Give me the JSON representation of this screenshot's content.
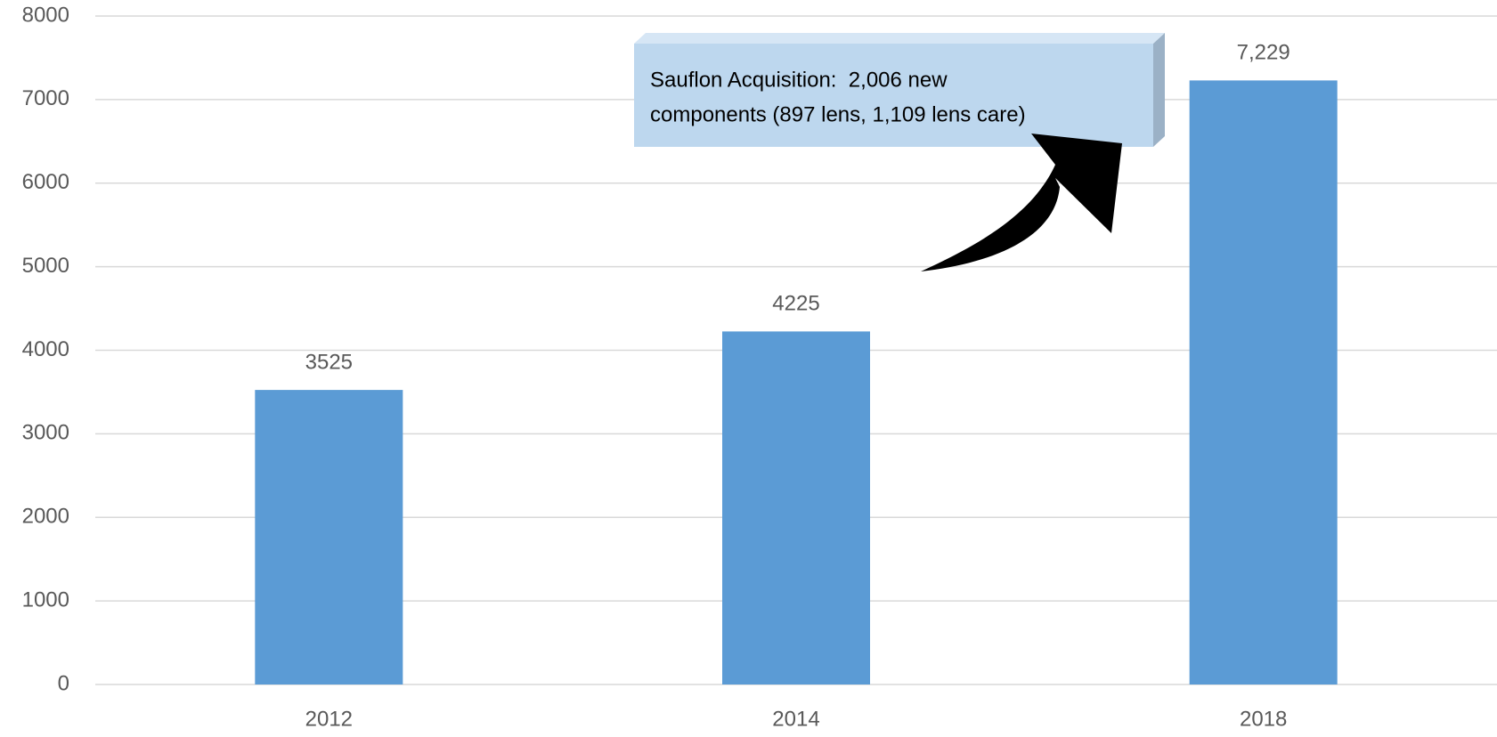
{
  "chart_data": {
    "type": "bar",
    "categories": [
      "2012",
      "2014",
      "2018"
    ],
    "values": [
      3525,
      4225,
      7229
    ],
    "value_labels": [
      "3525",
      "4225",
      "7,229"
    ],
    "color": "#5b9bd5",
    "ylim": [
      0,
      8000
    ],
    "yticks": [
      0,
      1000,
      2000,
      3000,
      4000,
      5000,
      6000,
      7000,
      8000
    ],
    "grid": true,
    "annotation": [
      "Sauflon Acquisition:  2,006 new",
      "components (897 lens, 1,109 lens care)"
    ]
  }
}
